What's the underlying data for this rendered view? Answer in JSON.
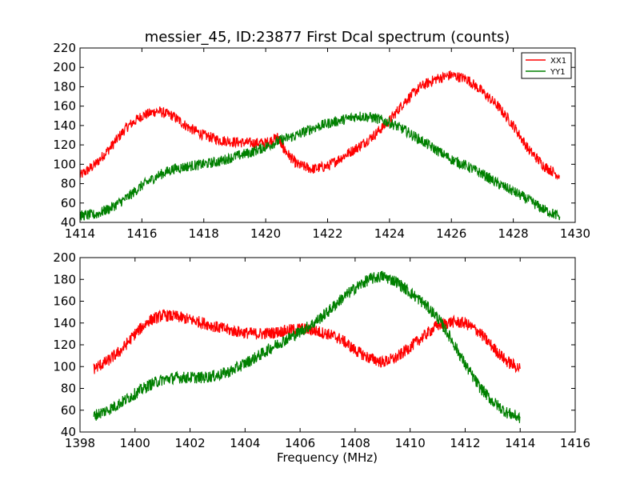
{
  "title": "messier_45, ID:23877 First Dcal spectrum (counts)",
  "chart_data": [
    {
      "type": "line",
      "title": "messier_45, ID:23877 First Dcal spectrum (counts)",
      "xlabel": "",
      "ylabel": "",
      "xlim": [
        1414,
        1430
      ],
      "ylim": [
        40,
        220
      ],
      "xticks": [
        "1414",
        "1416",
        "1418",
        "1420",
        "1422",
        "1424",
        "1426",
        "1428",
        "1430"
      ],
      "yticks": [
        "40",
        "60",
        "80",
        "100",
        "120",
        "140",
        "160",
        "180",
        "200",
        "220"
      ],
      "legend": "top-right",
      "grid": false,
      "series": [
        {
          "name": "XX1",
          "color": "#ff0000",
          "x": [
            1414.0,
            1414.5,
            1415.0,
            1415.5,
            1416.0,
            1416.5,
            1417.0,
            1417.5,
            1418.0,
            1418.5,
            1419.0,
            1419.5,
            1420.0,
            1420.4,
            1420.6,
            1421.0,
            1421.5,
            1422.0,
            1422.5,
            1423.0,
            1423.5,
            1424.0,
            1424.5,
            1425.0,
            1425.5,
            1426.0,
            1426.5,
            1427.0,
            1427.5,
            1428.0,
            1428.5,
            1429.0,
            1429.5
          ],
          "y": [
            88,
            100,
            118,
            138,
            150,
            155,
            150,
            138,
            130,
            125,
            123,
            122,
            122,
            128,
            115,
            100,
            95,
            98,
            108,
            118,
            130,
            145,
            165,
            180,
            188,
            192,
            188,
            175,
            160,
            140,
            115,
            98,
            88
          ]
        },
        {
          "name": "YY1",
          "color": "#008000",
          "x": [
            1414.0,
            1414.5,
            1415.0,
            1415.5,
            1416.0,
            1416.5,
            1417.0,
            1417.5,
            1418.0,
            1418.5,
            1419.0,
            1419.5,
            1420.0,
            1420.5,
            1421.0,
            1421.5,
            1422.0,
            1422.5,
            1423.0,
            1423.5,
            1424.0,
            1424.5,
            1425.0,
            1425.5,
            1426.0,
            1426.5,
            1427.0,
            1427.5,
            1428.0,
            1428.5,
            1429.0,
            1429.5
          ],
          "y": [
            47,
            48,
            55,
            65,
            78,
            88,
            95,
            98,
            100,
            103,
            108,
            112,
            118,
            125,
            130,
            137,
            142,
            146,
            150,
            148,
            143,
            135,
            125,
            115,
            105,
            98,
            90,
            80,
            72,
            63,
            53,
            46
          ]
        }
      ]
    },
    {
      "type": "line",
      "title": "",
      "xlabel": "Frequency (MHz)",
      "ylabel": "",
      "xlim": [
        1398,
        1416
      ],
      "ylim": [
        40,
        200
      ],
      "xticks": [
        "1398",
        "1400",
        "1402",
        "1404",
        "1406",
        "1408",
        "1410",
        "1412",
        "1414",
        "1416"
      ],
      "yticks": [
        "40",
        "60",
        "80",
        "100",
        "120",
        "140",
        "160",
        "180",
        "200"
      ],
      "grid": false,
      "series": [
        {
          "name": "XX1",
          "color": "#ff0000",
          "x": [
            1398.5,
            1399.0,
            1399.5,
            1400.0,
            1400.5,
            1401.0,
            1401.5,
            1402.0,
            1402.5,
            1403.0,
            1403.5,
            1404.0,
            1404.5,
            1405.0,
            1405.5,
            1406.0,
            1406.5,
            1407.0,
            1407.5,
            1408.0,
            1408.5,
            1409.0,
            1409.5,
            1410.0,
            1410.5,
            1411.0,
            1411.5,
            1412.0,
            1412.5,
            1413.0,
            1413.5,
            1414.0
          ],
          "y": [
            98,
            105,
            115,
            130,
            142,
            147,
            146,
            143,
            140,
            136,
            133,
            131,
            130,
            131,
            133,
            135,
            133,
            130,
            125,
            115,
            108,
            104,
            108,
            118,
            128,
            138,
            141,
            140,
            132,
            118,
            105,
            98
          ]
        },
        {
          "name": "YY1",
          "color": "#008000",
          "x": [
            1398.5,
            1399.0,
            1399.5,
            1400.0,
            1400.5,
            1401.0,
            1401.5,
            1402.0,
            1402.5,
            1403.0,
            1403.5,
            1404.0,
            1404.5,
            1405.0,
            1405.5,
            1406.0,
            1406.5,
            1407.0,
            1407.5,
            1408.0,
            1408.5,
            1409.0,
            1409.5,
            1410.0,
            1410.5,
            1411.0,
            1411.5,
            1412.0,
            1412.5,
            1413.0,
            1413.5,
            1414.0
          ],
          "y": [
            55,
            60,
            67,
            75,
            83,
            88,
            90,
            90,
            90,
            92,
            96,
            103,
            110,
            118,
            125,
            132,
            140,
            150,
            162,
            172,
            180,
            183,
            178,
            168,
            158,
            145,
            125,
            102,
            82,
            68,
            58,
            53
          ]
        }
      ]
    }
  ]
}
